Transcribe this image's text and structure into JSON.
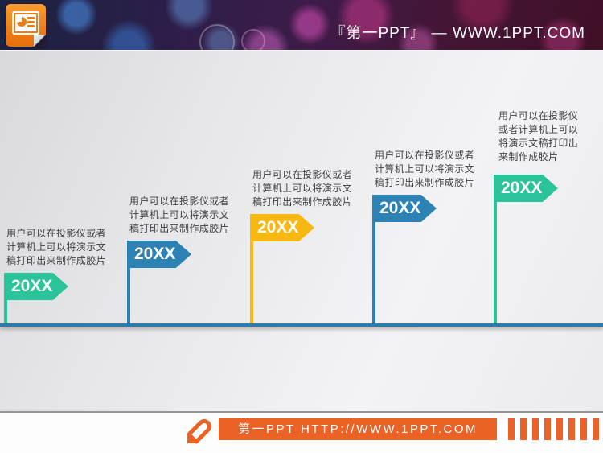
{
  "banner": {
    "site_text": "『第一PPT』 — WWW.1PPT.COM"
  },
  "timeline": {
    "axis_color": "#2b7cab",
    "milestones": [
      {
        "label": "20XX",
        "color": "#2bc49a",
        "description": "用户可以在投影仪或者计算机上可以将演示文稿打印出来制作成胶片"
      },
      {
        "label": "20XX",
        "color": "#2d82b5",
        "description": "用户可以在投影仪或者计算机上可以将演示文稿打印出来制作成胶片"
      },
      {
        "label": "20XX",
        "color": "#f7b811",
        "description": "用户可以在投影仪或者计算机上可以将演示文稿打印出来制作成胶片"
      },
      {
        "label": "20XX",
        "color": "#2d82b5",
        "description": "用户可以在投影仪或者计算机上可以将演示文稿打印出来制作成胶片"
      },
      {
        "label": "20XX",
        "color": "#2bc49a",
        "description": "用户可以在投影仪或者计算机上可以将演示文稿打印出来制作成胶片"
      }
    ]
  },
  "footer": {
    "banner_text": "第一PPT HTTP://WWW.1PPT.COM",
    "accent_color": "#eb6227"
  }
}
